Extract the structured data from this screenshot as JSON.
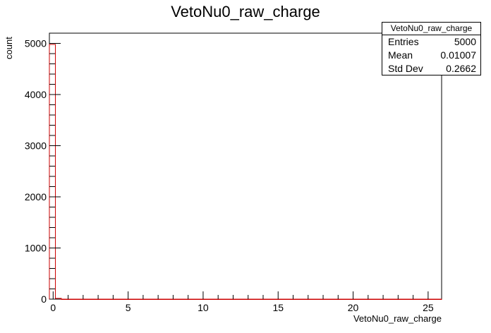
{
  "chart_data": {
    "type": "bar",
    "title": "VetoNu0_raw_charge",
    "xlabel": "VetoNu0_raw_charge",
    "ylabel": "count",
    "xlim": [
      -0.25,
      25.9
    ],
    "ylim": [
      0,
      5200
    ],
    "x_ticks": [
      0,
      5,
      10,
      15,
      20,
      25
    ],
    "y_ticks": [
      0,
      1000,
      2000,
      3000,
      4000,
      5000
    ],
    "bins": [
      {
        "x0": -0.25,
        "x1": 0.15,
        "value": 4980
      },
      {
        "x0": 0.15,
        "x1": 0.55,
        "value": 15
      },
      {
        "x0": 0.55,
        "x1": 25.9,
        "value": 0
      }
    ],
    "line_color": "#cc0000",
    "grid": false,
    "stats": {
      "title": "VetoNu0_raw_charge",
      "rows": [
        {
          "label": "Entries",
          "value": "5000"
        },
        {
          "label": "Mean",
          "value": "0.01007"
        },
        {
          "label": "Std Dev",
          "value": "0.2662"
        }
      ]
    }
  }
}
